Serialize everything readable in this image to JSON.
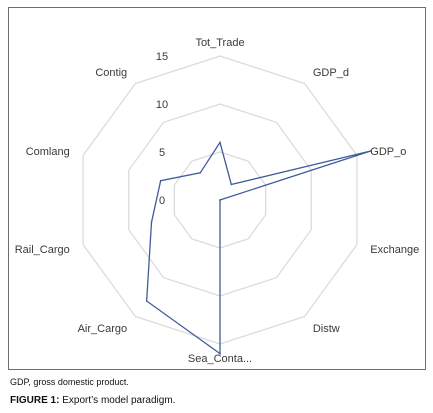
{
  "chart_data": {
    "type": "radar",
    "categories": [
      "Tot_Trade",
      "GDP_d",
      "GDP_o",
      "Exchange",
      "Distw",
      "Sea_Conta...",
      "Air_Cargo",
      "Rail_Cargo",
      "Comlang",
      "Contig"
    ],
    "series": [
      {
        "values": [
          6,
          2,
          16.5,
          0,
          0,
          16,
          13,
          7.5,
          6.5,
          3.5
        ],
        "color": "#3f5c9a"
      }
    ],
    "rlim": [
      0,
      15
    ],
    "ticks": [
      0,
      5,
      10,
      15
    ],
    "grid": true,
    "grid_color": "#d9d9d9"
  },
  "footnote": "GDP, gross domestic product.",
  "caption": {
    "label": "FIGURE 1:",
    "text": " Export’s model paradigm."
  }
}
